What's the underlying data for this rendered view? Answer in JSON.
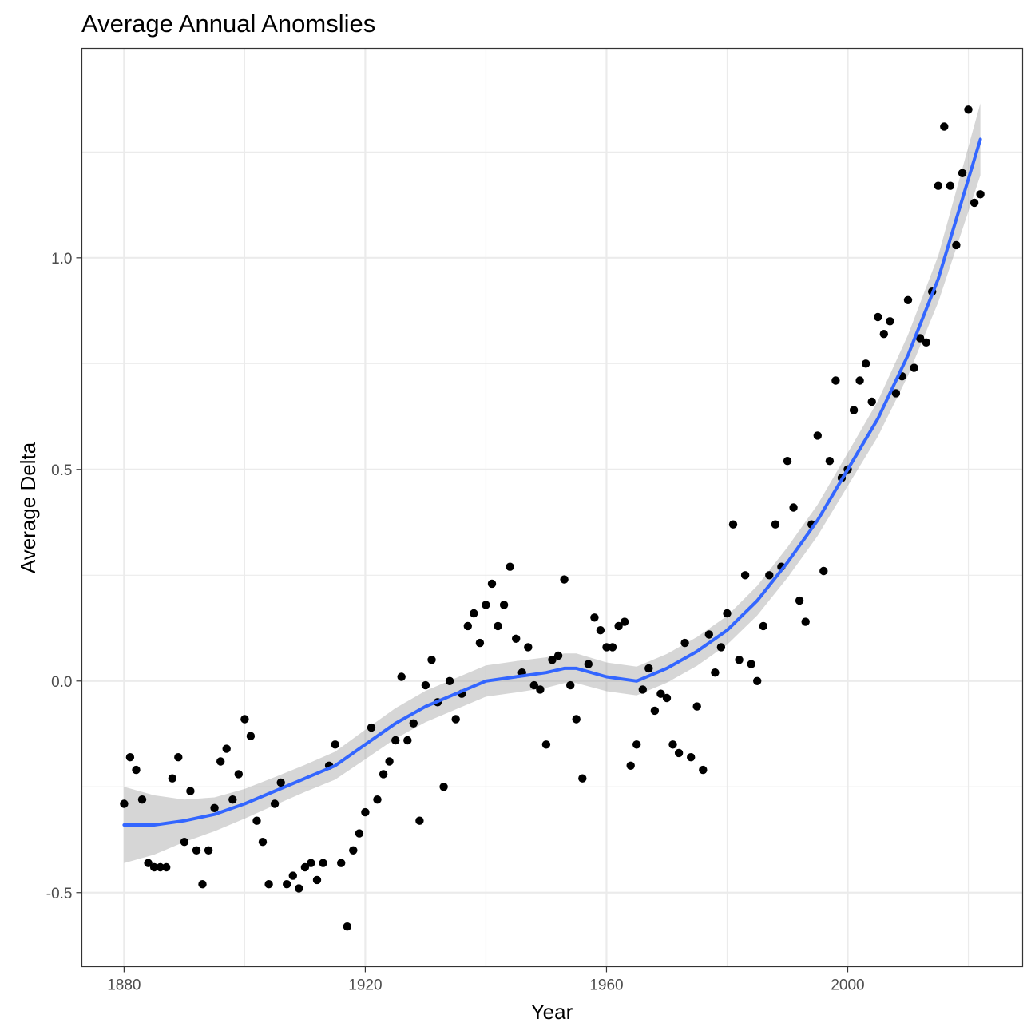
{
  "chart_data": {
    "type": "scatter",
    "title": "Average Annual Anomslies",
    "xlabel": "Year",
    "ylabel": "Average Delta",
    "xlim": [
      1873,
      2029
    ],
    "ylim": [
      -0.675,
      1.495
    ],
    "x_ticks": [
      1880,
      1920,
      1960,
      2000
    ],
    "x_tick_labels": [
      "1880",
      "1920",
      "1960",
      "2000"
    ],
    "x_minor_ticks": [
      1900,
      1940,
      1980,
      2020
    ],
    "y_ticks": [
      -0.5,
      0.0,
      0.5,
      1.0
    ],
    "y_tick_labels": [
      "-0.5",
      "0.0",
      "0.5",
      "1.0"
    ],
    "y_minor_ticks": [
      -0.25,
      0.25,
      0.75,
      1.25
    ],
    "grid": true,
    "legend": "none",
    "colors": {
      "points": "#000000",
      "smooth_line": "#3366ff",
      "confidence_band": "#999999",
      "grid": "#ebebeb",
      "panel_border": "#333333",
      "tick_label": "#4d4d4d"
    },
    "points": {
      "x": [
        1880,
        1881,
        1882,
        1883,
        1884,
        1885,
        1886,
        1887,
        1888,
        1889,
        1890,
        1891,
        1892,
        1893,
        1894,
        1895,
        1896,
        1897,
        1898,
        1899,
        1900,
        1901,
        1902,
        1903,
        1904,
        1905,
        1906,
        1907,
        1908,
        1909,
        1910,
        1911,
        1912,
        1913,
        1914,
        1915,
        1916,
        1917,
        1918,
        1919,
        1920,
        1921,
        1922,
        1923,
        1924,
        1925,
        1926,
        1927,
        1928,
        1929,
        1930,
        1931,
        1932,
        1933,
        1934,
        1935,
        1936,
        1937,
        1938,
        1939,
        1940,
        1941,
        1942,
        1943,
        1944,
        1945,
        1946,
        1947,
        1948,
        1949,
        1950,
        1951,
        1952,
        1953,
        1954,
        1955,
        1956,
        1957,
        1958,
        1959,
        1960,
        1961,
        1962,
        1963,
        1964,
        1965,
        1966,
        1967,
        1968,
        1969,
        1970,
        1971,
        1972,
        1973,
        1974,
        1975,
        1976,
        1977,
        1978,
        1979,
        1980,
        1981,
        1982,
        1983,
        1984,
        1985,
        1986,
        1987,
        1988,
        1989,
        1990,
        1991,
        1992,
        1993,
        1994,
        1995,
        1996,
        1997,
        1998,
        1999,
        2000,
        2001,
        2002,
        2003,
        2004,
        2005,
        2006,
        2007,
        2008,
        2009,
        2010,
        2011,
        2012,
        2013,
        2014,
        2015,
        2016,
        2017,
        2018,
        2019,
        2020,
        2021,
        2022
      ],
      "y": [
        -0.29,
        -0.18,
        -0.21,
        -0.28,
        -0.43,
        -0.44,
        -0.44,
        -0.44,
        -0.23,
        -0.18,
        -0.38,
        -0.26,
        -0.4,
        -0.48,
        -0.4,
        -0.3,
        -0.19,
        -0.16,
        -0.28,
        -0.22,
        -0.09,
        -0.13,
        -0.33,
        -0.38,
        -0.48,
        -0.29,
        -0.24,
        -0.48,
        -0.46,
        -0.49,
        -0.44,
        -0.43,
        -0.47,
        -0.43,
        -0.2,
        -0.15,
        -0.43,
        -0.58,
        -0.4,
        -0.36,
        -0.31,
        -0.11,
        -0.28,
        -0.22,
        -0.19,
        -0.14,
        0.01,
        -0.14,
        -0.1,
        -0.33,
        -0.01,
        0.05,
        -0.05,
        -0.25,
        0.0,
        -0.09,
        -0.03,
        0.13,
        0.16,
        0.09,
        0.18,
        0.23,
        0.13,
        0.18,
        0.27,
        0.1,
        0.02,
        0.08,
        -0.01,
        -0.02,
        -0.15,
        0.05,
        0.06,
        0.24,
        -0.01,
        -0.09,
        -0.23,
        0.04,
        0.15,
        0.12,
        0.08,
        0.08,
        0.13,
        0.14,
        -0.2,
        -0.15,
        -0.02,
        0.03,
        -0.07,
        -0.03,
        -0.04,
        -0.15,
        -0.17,
        0.09,
        -0.18,
        -0.06,
        -0.21,
        0.11,
        0.02,
        0.08,
        0.16,
        0.37,
        0.05,
        0.25,
        0.04,
        0.0,
        0.13,
        0.25,
        0.37,
        0.27,
        0.52,
        0.41,
        0.19,
        0.14,
        0.37,
        0.58,
        0.26,
        0.52,
        0.71,
        0.48,
        0.5,
        0.64,
        0.71,
        0.75,
        0.66,
        0.86,
        0.82,
        0.85,
        0.68,
        0.72,
        0.9,
        0.74,
        0.81,
        0.8,
        0.92,
        1.17,
        1.31,
        1.17,
        1.03,
        1.2,
        1.35,
        1.13,
        1.15
      ]
    },
    "smooth": {
      "x": [
        1880,
        1885,
        1890,
        1895,
        1900,
        1905,
        1910,
        1915,
        1920,
        1925,
        1930,
        1935,
        1940,
        1945,
        1950,
        1953,
        1955,
        1960,
        1965,
        1970,
        1975,
        1980,
        1985,
        1990,
        1995,
        2000,
        2005,
        2010,
        2015,
        2022
      ],
      "y": [
        -0.34,
        -0.34,
        -0.33,
        -0.315,
        -0.29,
        -0.26,
        -0.23,
        -0.2,
        -0.15,
        -0.1,
        -0.06,
        -0.03,
        0.0,
        0.01,
        0.02,
        0.03,
        0.03,
        0.01,
        0.0,
        0.03,
        0.07,
        0.12,
        0.19,
        0.28,
        0.38,
        0.5,
        0.62,
        0.77,
        0.95,
        1.28
      ],
      "se": [
        0.09,
        0.07,
        0.05,
        0.04,
        0.035,
        0.033,
        0.032,
        0.033,
        0.035,
        0.036,
        0.037,
        0.037,
        0.037,
        0.037,
        0.036,
        0.035,
        0.035,
        0.034,
        0.034,
        0.034,
        0.034,
        0.034,
        0.035,
        0.036,
        0.037,
        0.039,
        0.042,
        0.048,
        0.055,
        0.085
      ]
    }
  }
}
